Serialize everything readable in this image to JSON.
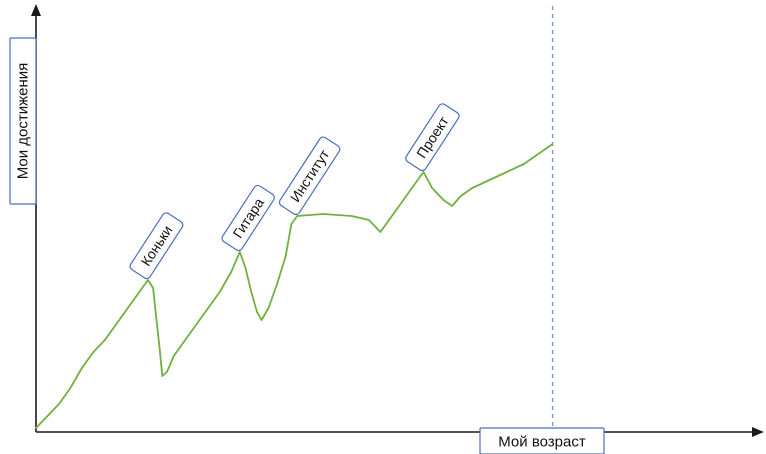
{
  "chart_data": {
    "type": "line",
    "xlabel": "Мой возраст",
    "ylabel": "Мои достижения",
    "xlim": [
      0,
      100
    ],
    "ylim": [
      0,
      100
    ],
    "grid": false,
    "legend": "none",
    "series": [
      {
        "values": [
          [
            0,
            0
          ],
          [
            2,
            3
          ],
          [
            4,
            6
          ],
          [
            6,
            10
          ],
          [
            8,
            15
          ],
          [
            10,
            19
          ],
          [
            12,
            22
          ],
          [
            14,
            26
          ],
          [
            16,
            30
          ],
          [
            18,
            34
          ],
          [
            19.5,
            37
          ],
          [
            20.4,
            35
          ],
          [
            21,
            27
          ],
          [
            21.6,
            19
          ],
          [
            22,
            13
          ],
          [
            22.8,
            14
          ],
          [
            24,
            18
          ],
          [
            26,
            22
          ],
          [
            28,
            26
          ],
          [
            30,
            30
          ],
          [
            32,
            34
          ],
          [
            34,
            39
          ],
          [
            35.5,
            44
          ],
          [
            36.5,
            40
          ],
          [
            37.5,
            34
          ],
          [
            38.5,
            29
          ],
          [
            39.3,
            27
          ],
          [
            40.5,
            30
          ],
          [
            42,
            36
          ],
          [
            43.5,
            43
          ],
          [
            44.5,
            51
          ],
          [
            45.5,
            53
          ],
          [
            50,
            53.5
          ],
          [
            55,
            53
          ],
          [
            58,
            52
          ],
          [
            60,
            49
          ],
          [
            62,
            53
          ],
          [
            64,
            57
          ],
          [
            66,
            61
          ],
          [
            67.5,
            64
          ],
          [
            69,
            60
          ],
          [
            71,
            57
          ],
          [
            72.5,
            55.5
          ],
          [
            74,
            58
          ],
          [
            76,
            60
          ],
          [
            79,
            62
          ],
          [
            82,
            64
          ],
          [
            85,
            66
          ],
          [
            88,
            69
          ],
          [
            90,
            71
          ]
        ]
      }
    ],
    "annotations": [
      {
        "label": "Коньки",
        "x": 19.5,
        "y": 37
      },
      {
        "label": "Гитара",
        "x": 35.5,
        "y": 44
      },
      {
        "label": "Институт",
        "x": 45.5,
        "y": 53
      },
      {
        "label": "Проект",
        "x": 67.5,
        "y": 64
      }
    ],
    "vertical_marker": {
      "x": 90,
      "style": "dashed",
      "color": "#7a9ad8"
    },
    "series_color": "#70b040",
    "box_border_color": "#4a6fc0"
  }
}
